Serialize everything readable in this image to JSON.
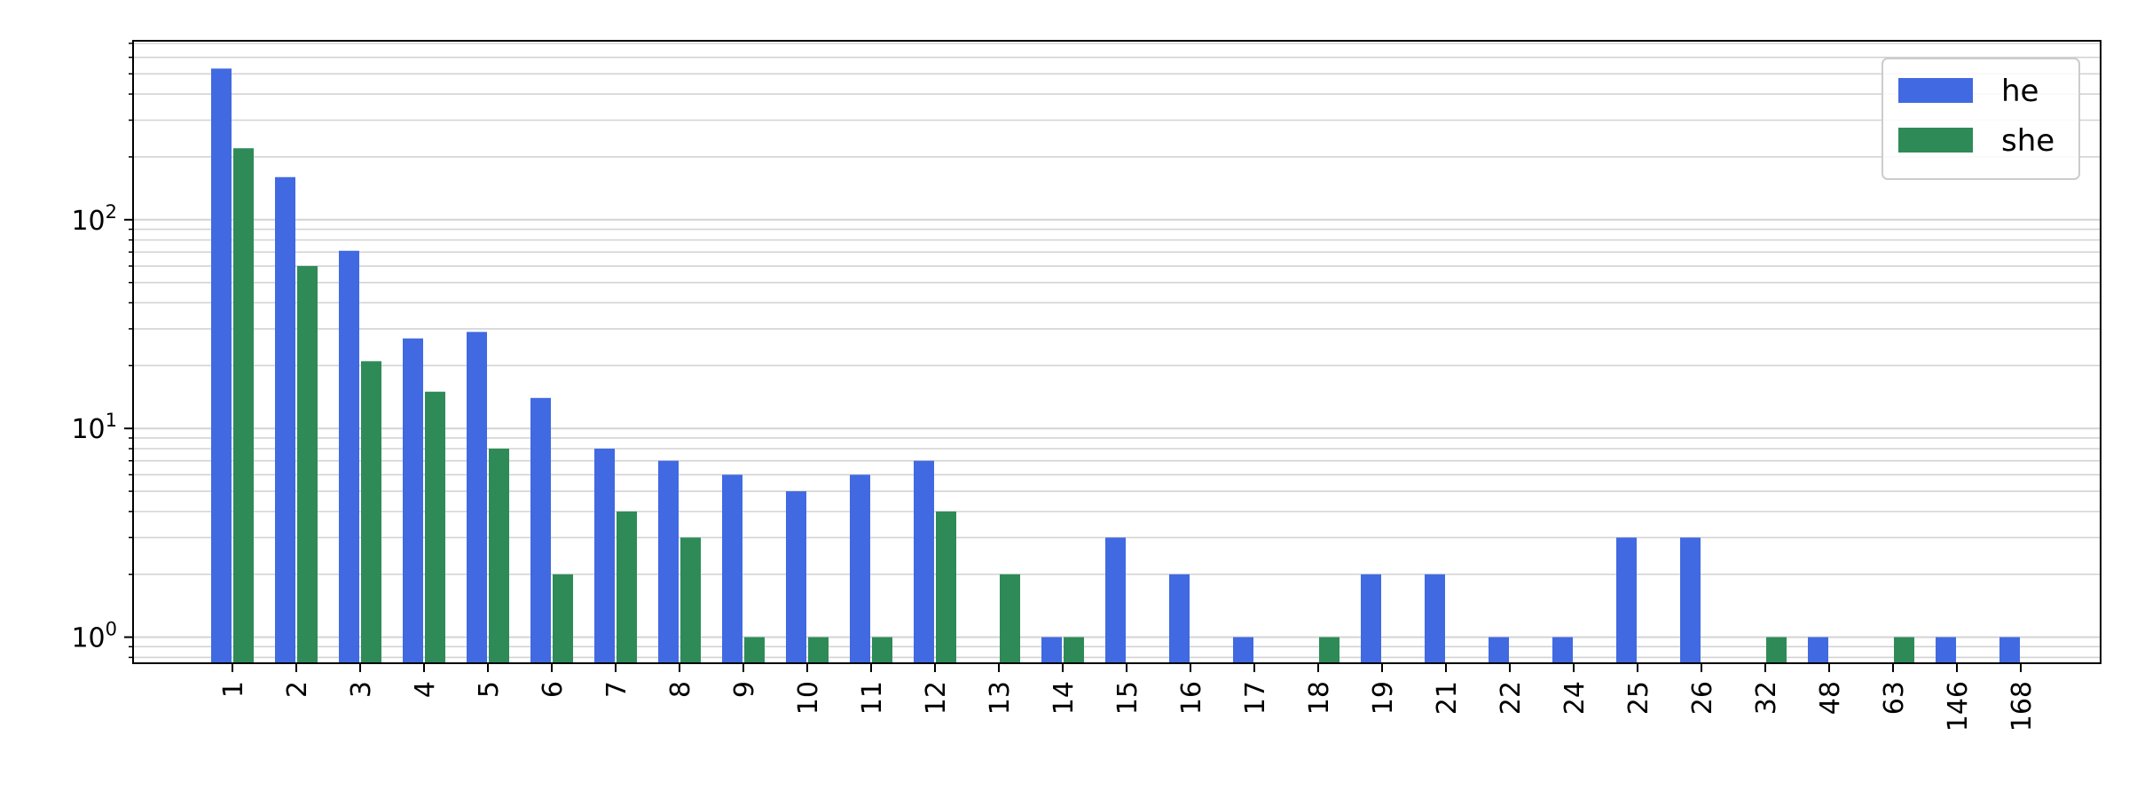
{
  "chart_data": {
    "type": "bar",
    "title": "",
    "xlabel": "",
    "ylabel": "",
    "yscale": "log",
    "ylim": [
      0.75,
      720
    ],
    "grid": {
      "y_major": true,
      "y_minor": true,
      "x": false
    },
    "legend_placement": "top-right",
    "categories": [
      "1",
      "2",
      "3",
      "4",
      "5",
      "6",
      "7",
      "8",
      "9",
      "10",
      "11",
      "12",
      "13",
      "14",
      "15",
      "16",
      "17",
      "18",
      "19",
      "21",
      "22",
      "24",
      "25",
      "26",
      "32",
      "48",
      "63",
      "146",
      "168"
    ],
    "series": [
      {
        "name": "he",
        "color": "#4169e1",
        "values": [
          530,
          160,
          71,
          27,
          29,
          14,
          8,
          7,
          6,
          5,
          6,
          7,
          null,
          1,
          3,
          2,
          1,
          null,
          2,
          2,
          1,
          1,
          3,
          3,
          null,
          1,
          null,
          1,
          1
        ]
      },
      {
        "name": "she",
        "color": "#2e8b57",
        "values": [
          220,
          60,
          21,
          15,
          8,
          2,
          4,
          3,
          1,
          1,
          1,
          4,
          2,
          1,
          null,
          null,
          null,
          1,
          null,
          null,
          null,
          null,
          null,
          null,
          1,
          null,
          1,
          null,
          null
        ]
      }
    ],
    "y_ticks": [
      {
        "value": 1,
        "base": "10",
        "exp": "0"
      },
      {
        "value": 10,
        "base": "10",
        "exp": "1"
      },
      {
        "value": 100,
        "base": "10",
        "exp": "2"
      }
    ]
  }
}
